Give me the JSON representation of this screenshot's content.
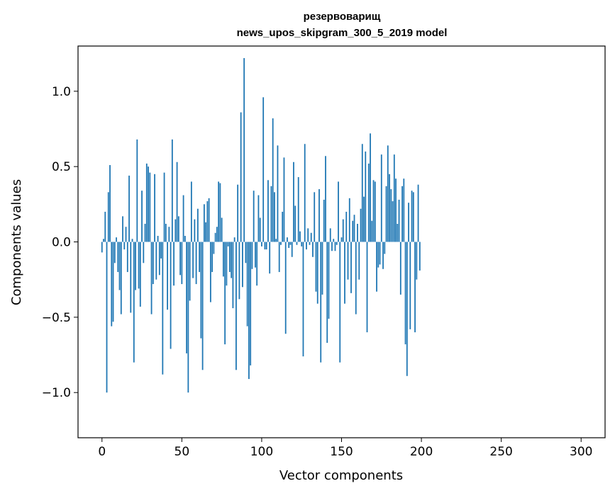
{
  "chart_data": {
    "type": "bar",
    "title_line1": "резервоварищ",
    "title_line2": "news_upos_skipgram_300_5_2019 model",
    "xlabel": "Vector components",
    "ylabel": "Components values",
    "xlim": [
      -15,
      315
    ],
    "ylim": [
      -1.3,
      1.3
    ],
    "x_ticks": [
      0,
      50,
      100,
      150,
      200,
      250,
      300
    ],
    "y_ticks": [
      -1.0,
      -0.5,
      0.0,
      0.5,
      1.0
    ],
    "x_tick_labels": [
      "0",
      "50",
      "100",
      "150",
      "200",
      "250",
      "300"
    ],
    "y_tick_labels": [
      "−1.0",
      "−0.5",
      "0.0",
      "0.5",
      "1.0"
    ],
    "bar_color": "#1f77b4",
    "grid": false,
    "values": [
      -0.07,
      0.02,
      0.2,
      -1.0,
      0.33,
      0.51,
      -0.56,
      -0.53,
      -0.14,
      0.03,
      -0.2,
      -0.32,
      -0.48,
      0.17,
      -0.05,
      0.1,
      -0.2,
      0.44,
      -0.47,
      0.02,
      -0.8,
      -0.32,
      0.68,
      -0.31,
      -0.43,
      0.34,
      -0.14,
      0.12,
      0.52,
      0.5,
      0.46,
      -0.48,
      -0.28,
      0.45,
      -0.25,
      0.04,
      -0.22,
      -0.11,
      -0.88,
      0.46,
      0.12,
      -0.45,
      0.1,
      -0.71,
      0.68,
      -0.29,
      0.15,
      0.53,
      0.17,
      -0.22,
      -0.28,
      0.31,
      0.04,
      -0.74,
      -1.0,
      -0.39,
      0.4,
      -0.24,
      0.15,
      -0.28,
      0.22,
      -0.2,
      -0.64,
      -0.85,
      0.25,
      0.13,
      0.27,
      0.29,
      -0.4,
      -0.2,
      -0.08,
      0.06,
      0.1,
      0.4,
      0.39,
      0.16,
      -0.23,
      -0.68,
      -0.29,
      -0.03,
      -0.2,
      -0.24,
      -0.44,
      0.03,
      -0.85,
      0.38,
      -0.38,
      0.86,
      -0.3,
      1.22,
      -0.14,
      -0.56,
      -0.91,
      -0.82,
      -0.18,
      0.34,
      -0.17,
      -0.29,
      0.31,
      0.16,
      -0.03,
      0.96,
      -0.05,
      -0.05,
      0.41,
      -0.21,
      0.37,
      0.82,
      0.33,
      0.02,
      0.64,
      -0.2,
      -0.02,
      0.2,
      0.56,
      -0.61,
      0.03,
      -0.04,
      -0.02,
      -0.1,
      0.53,
      0.24,
      -0.02,
      0.43,
      0.07,
      -0.03,
      -0.76,
      0.65,
      -0.05,
      0.09,
      -0.02,
      0.06,
      -0.1,
      0.33,
      -0.33,
      -0.41,
      0.35,
      -0.8,
      -0.35,
      0.28,
      0.57,
      -0.67,
      -0.51,
      0.09,
      -0.06,
      0.02,
      -0.06,
      -0.02,
      0.4,
      -0.8,
      0.03,
      0.15,
      -0.41,
      0.2,
      -0.25,
      0.29,
      -0.34,
      0.14,
      0.18,
      -0.48,
      0.12,
      -0.25,
      0.22,
      0.65,
      0.3,
      0.6,
      -0.6,
      0.52,
      0.72,
      0.14,
      0.41,
      0.4,
      -0.33,
      -0.17,
      -0.15,
      0.58,
      -0.18,
      -0.08,
      0.37,
      0.64,
      0.45,
      0.35,
      0.27,
      0.58,
      0.42,
      0.12,
      0.28,
      -0.35,
      0.37,
      0.42,
      -0.68,
      -0.89,
      0.26,
      -0.58,
      0.34,
      0.33,
      -0.6,
      -0.25,
      0.38,
      -0.19
    ]
  }
}
